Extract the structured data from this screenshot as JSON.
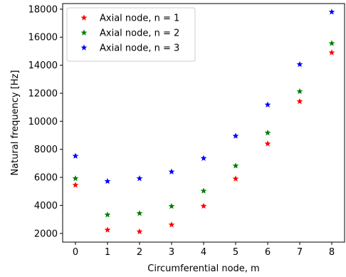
{
  "chart_data": {
    "type": "scatter",
    "title": "",
    "xlabel": "Circumferential node, m",
    "ylabel": "Natural frequency [Hz]",
    "x": [
      0,
      1,
      2,
      3,
      4,
      5,
      6,
      7,
      8
    ],
    "xlim": [
      -0.4,
      8.4
    ],
    "ylim": [
      1380,
      18400
    ],
    "xticks": [
      0,
      1,
      2,
      3,
      4,
      5,
      6,
      7,
      8
    ],
    "yticks": [
      2000,
      4000,
      6000,
      8000,
      10000,
      12000,
      14000,
      16000,
      18000
    ],
    "grid": false,
    "marker": "star",
    "legend": {
      "placement": "upper-left"
    },
    "series": [
      {
        "name": "Axial node, n = 1",
        "color": "#ff0000",
        "values": [
          5450,
          2250,
          2130,
          2620,
          3950,
          5900,
          8400,
          11420,
          14900
        ]
      },
      {
        "name": "Axial node, n = 2",
        "color": "#008000",
        "values": [
          5920,
          3330,
          3430,
          3940,
          5030,
          6820,
          9180,
          12130,
          15560
        ]
      },
      {
        "name": "Axial node, n = 3",
        "color": "#0000ff",
        "values": [
          7520,
          5720,
          5920,
          6400,
          7360,
          8950,
          11180,
          14060,
          17800
        ]
      }
    ]
  }
}
